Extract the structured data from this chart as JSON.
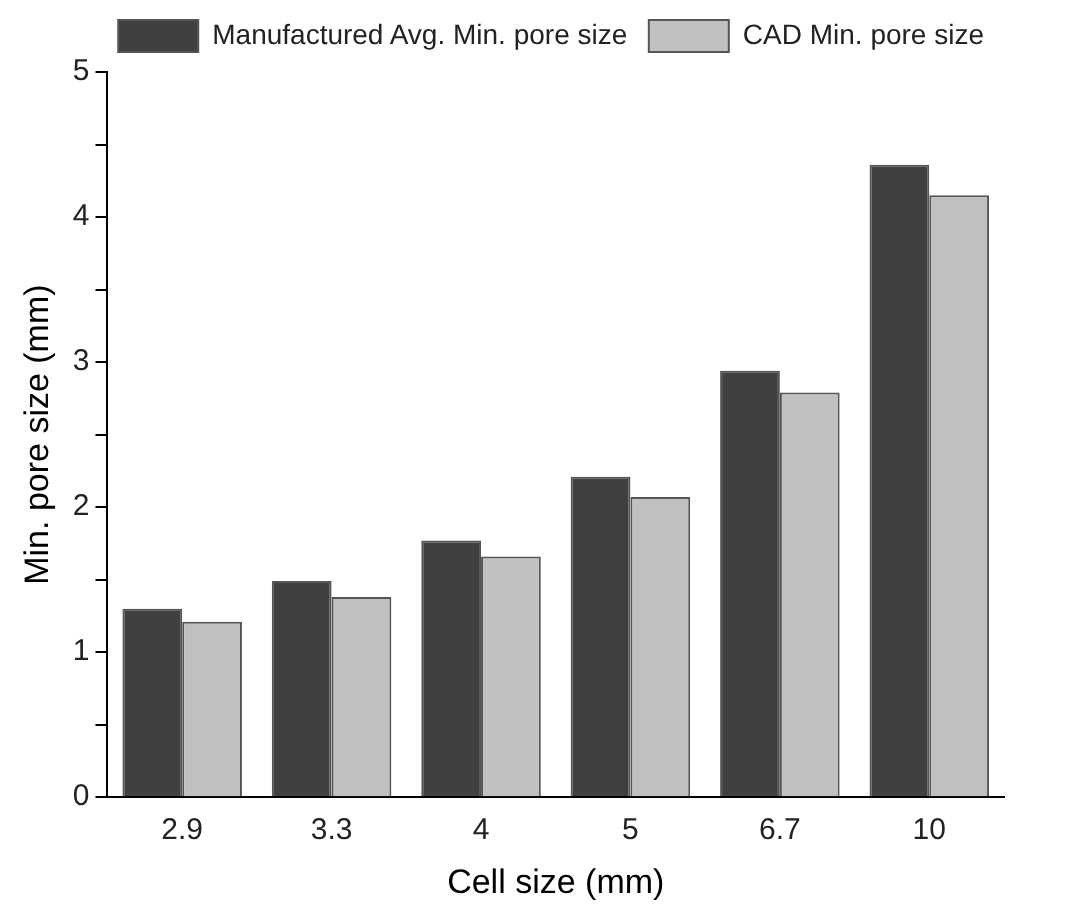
{
  "chart_data": {
    "type": "bar",
    "xlabel": "Cell size (mm)",
    "ylabel": "Min. pore size (mm)",
    "categories": [
      "2.9",
      "3.3",
      "4",
      "5",
      "6.7",
      "10"
    ],
    "series": [
      {
        "name": "Manufactured Avg. Min. pore size",
        "color": "#404040",
        "values": [
          1.3,
          1.49,
          1.77,
          2.21,
          2.94,
          4.36
        ]
      },
      {
        "name": "CAD Min. pore size",
        "color": "#c0c0c0",
        "values": [
          1.21,
          1.38,
          1.66,
          2.07,
          2.79,
          4.15
        ]
      }
    ],
    "ylim": [
      0,
      5
    ],
    "yticks": [
      0,
      {
        "value": 0.5,
        "label": null
      },
      1,
      {
        "value": 1.5,
        "label": null
      },
      2,
      {
        "value": 2.5,
        "label": null
      },
      3,
      {
        "value": 3.5,
        "label": null
      },
      4,
      {
        "value": 4.5,
        "label": null
      },
      5
    ],
    "grid": false,
    "legend": "top right"
  }
}
